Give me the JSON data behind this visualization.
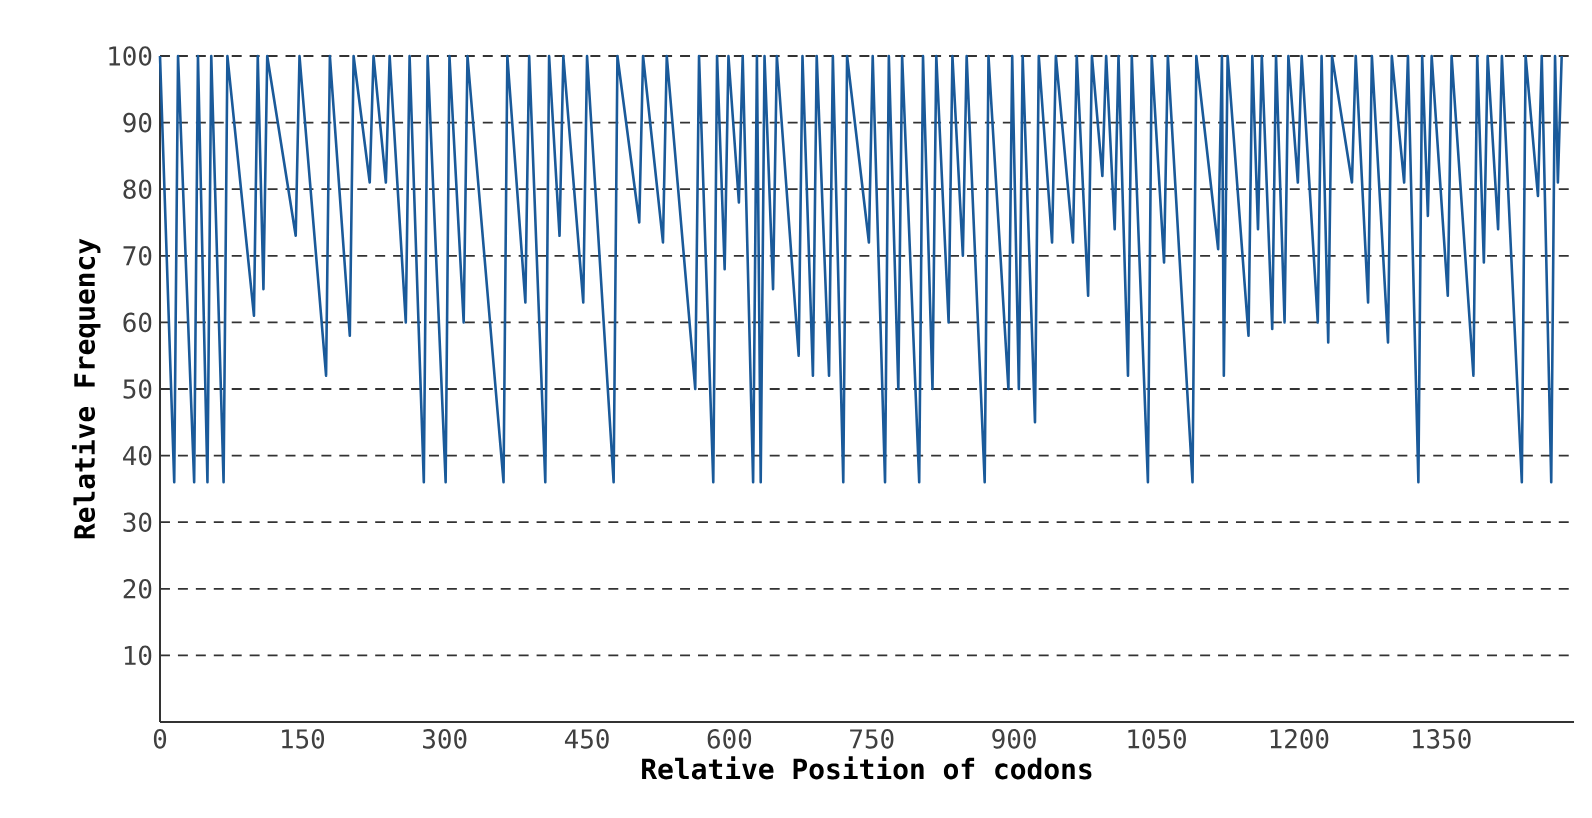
{
  "chart_data": {
    "type": "line",
    "xlabel": "Relative Position of codons",
    "ylabel": "Relative Frequency",
    "xlim": [
      0,
      1490
    ],
    "ylim": [
      0,
      100
    ],
    "xticks": [
      0,
      150,
      300,
      450,
      600,
      750,
      900,
      1050,
      1200,
      1350
    ],
    "yticks": [
      10,
      20,
      30,
      40,
      50,
      60,
      70,
      80,
      90,
      100
    ],
    "grid": "y",
    "marker": "none",
    "line_style": "solid",
    "series": [
      {
        "color": "#1a5a9a",
        "x": [
          0,
          15,
          19,
          36,
          40,
          50,
          54,
          67,
          71,
          99,
          103,
          109,
          113,
          143,
          147,
          175,
          179,
          200,
          204,
          221,
          225,
          238,
          242,
          259,
          263,
          278,
          282,
          301,
          305,
          320,
          324,
          362,
          366,
          385,
          389,
          406,
          410,
          421,
          425,
          446,
          450,
          478,
          482,
          505,
          509,
          530,
          534,
          564,
          568,
          583,
          587,
          595,
          599,
          610,
          614,
          625,
          629,
          633,
          637,
          646,
          650,
          673,
          677,
          688,
          692,
          705,
          709,
          720,
          724,
          747,
          751,
          764,
          768,
          778,
          782,
          800,
          804,
          814,
          818,
          831,
          835,
          846,
          850,
          869,
          873,
          894,
          898,
          905,
          909,
          922,
          926,
          940,
          944,
          962,
          966,
          978,
          982,
          993,
          997,
          1006,
          1010,
          1020,
          1024,
          1041,
          1045,
          1058,
          1062,
          1088,
          1092,
          1115,
          1119,
          1121,
          1125,
          1147,
          1151,
          1157,
          1161,
          1172,
          1176,
          1185,
          1189,
          1199,
          1203,
          1220,
          1224,
          1231,
          1235,
          1256,
          1260,
          1273,
          1277,
          1294,
          1298,
          1311,
          1315,
          1326,
          1330,
          1336,
          1340,
          1357,
          1361,
          1384,
          1388,
          1395,
          1399,
          1410,
          1414,
          1435,
          1439,
          1452,
          1456,
          1466,
          1470,
          1473,
          1477
        ],
        "values": [
          100,
          36,
          100,
          36,
          100,
          36,
          100,
          36,
          100,
          61,
          100,
          65,
          100,
          73,
          100,
          52,
          100,
          58,
          100,
          81,
          100,
          81,
          100,
          60,
          100,
          36,
          100,
          36,
          100,
          60,
          100,
          36,
          100,
          63,
          100,
          36,
          100,
          73,
          100,
          63,
          100,
          36,
          100,
          75,
          100,
          72,
          100,
          50,
          100,
          36,
          100,
          68,
          100,
          78,
          100,
          36,
          100,
          36,
          100,
          65,
          100,
          55,
          100,
          52,
          100,
          52,
          100,
          36,
          100,
          72,
          100,
          36,
          100,
          50,
          100,
          36,
          100,
          50,
          100,
          60,
          100,
          70,
          100,
          36,
          100,
          50,
          100,
          50,
          100,
          45,
          100,
          72,
          100,
          72,
          100,
          64,
          100,
          82,
          100,
          74,
          100,
          52,
          100,
          36,
          100,
          69,
          100,
          36,
          100,
          71,
          100,
          52,
          100,
          58,
          100,
          74,
          100,
          59,
          100,
          60,
          100,
          81,
          100,
          60,
          100,
          57,
          100,
          81,
          100,
          63,
          100,
          57,
          100,
          81,
          100,
          36,
          100,
          76,
          100,
          64,
          100,
          52,
          100,
          69,
          100,
          74,
          100,
          36,
          100,
          79,
          100,
          36,
          100,
          81,
          100
        ]
      }
    ]
  }
}
